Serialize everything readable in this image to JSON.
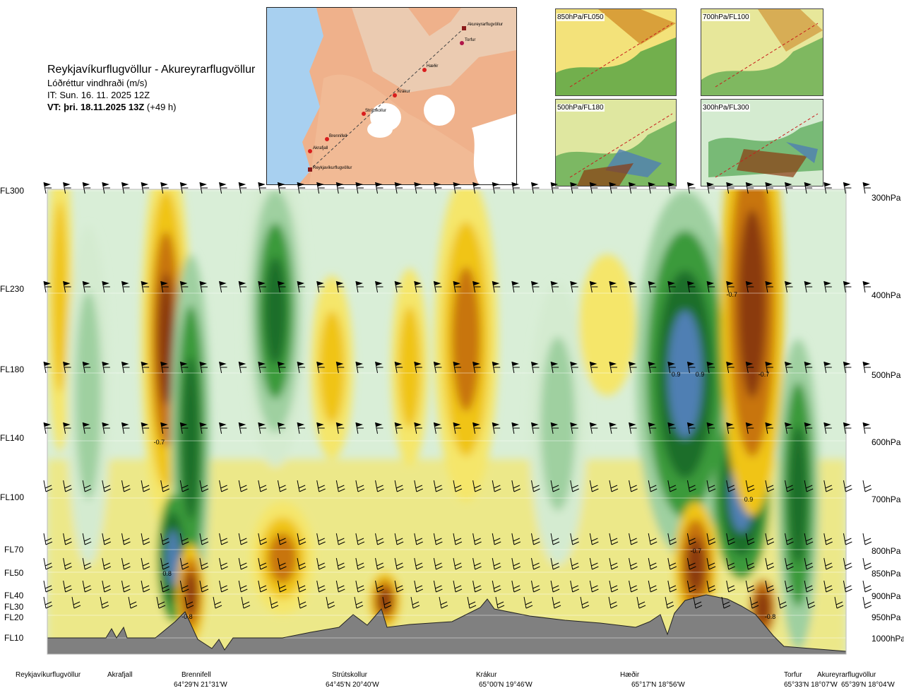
{
  "header": {
    "route": "Reykjavíkurflugvöllur - Akureyrarflugvöllur",
    "parameter": "Lóðréttur vindhraði (m/s)",
    "init_time": "IT: Sun. 16. 11. 2025 12Z",
    "valid_time_bold": "VT: þri. 18.11.2025 13Z",
    "valid_time_offset": " (+49 h)"
  },
  "insets": [
    {
      "label": "850hPa/FL050"
    },
    {
      "label": "700hPa/FL100"
    },
    {
      "label": "500hPa/FL180"
    },
    {
      "label": "300hPa/FL300"
    }
  ],
  "map_labels": [
    "Akureyrarflugvöllur",
    "Torfur",
    "Hæðir",
    "Krákur",
    "Strútskollur",
    "Brennifell",
    "Akrafjall",
    "Reykjavíkurflugvöllur"
  ],
  "chart_data": {
    "type": "heatmap",
    "title": "Lóðréttur vindhraði (m/s)",
    "y_left_ticks": [
      "FL300",
      "FL230",
      "FL180",
      "FL140",
      "FL100",
      "FL70",
      "FL50",
      "FL40",
      "FL30",
      "FL20",
      "FL10"
    ],
    "y_right_ticks": [
      "300hPa",
      "400hPa",
      "500hPa",
      "600hPa",
      "700hPa",
      "800hPa",
      "850hPa",
      "900hPa",
      "950hPa",
      "1000hPa"
    ],
    "locations": [
      {
        "name": "Reykjavíkurflugvöllur",
        "coord": ""
      },
      {
        "name": "Akrafjall",
        "coord": ""
      },
      {
        "name": "Brennifell",
        "coord": "64°29'N 21°31'W"
      },
      {
        "name": "Strútskollur",
        "coord": "64°45'N 20°40'W"
      },
      {
        "name": "Krákur",
        "coord": "65°00'N 19°46'W"
      },
      {
        "name": "Hæðir",
        "coord": "65°17'N 18°56'W"
      },
      {
        "name": "Torfur",
        "coord": "65°33'N 18°07'W"
      },
      {
        "name": "Akureyrarflugvöllur",
        "coord": "65°39'N 18°04'W"
      }
    ],
    "annotations": [
      {
        "value": "-0.7",
        "x_frac": 0.14,
        "level": "600hPa"
      },
      {
        "value": "0.8",
        "x_frac": 0.15,
        "level": "850hPa"
      },
      {
        "value": "-0.8",
        "x_frac": 0.175,
        "level": "950hPa"
      },
      {
        "value": "-0.7",
        "x_frac": 0.857,
        "level": "400hPa"
      },
      {
        "value": "0.9",
        "x_frac": 0.787,
        "level": "500hPa"
      },
      {
        "value": "0.9",
        "x_frac": 0.817,
        "level": "500hPa"
      },
      {
        "value": "-0.7",
        "x_frac": 0.897,
        "level": "500hPa"
      },
      {
        "value": "0.9",
        "x_frac": 0.878,
        "level": "700hPa"
      },
      {
        "value": "-0.7",
        "x_frac": 0.812,
        "level": "800hPa"
      },
      {
        "value": "-0.8",
        "x_frac": 0.905,
        "level": "950hPa"
      }
    ],
    "colors": {
      "strong_down": "#8b3a0f",
      "mod_down": "#c8740f",
      "weak_down": "#f0c418",
      "slight_down": "#f5e66a",
      "neutral": "#fbf6c8",
      "slight_up": "#d4ebd0",
      "weak_up": "#9fd0a0",
      "mod_up": "#3a9a3a",
      "strong_up": "#1b6e2a",
      "max_up": "#4f7fb3",
      "terrain": "#808080"
    }
  }
}
